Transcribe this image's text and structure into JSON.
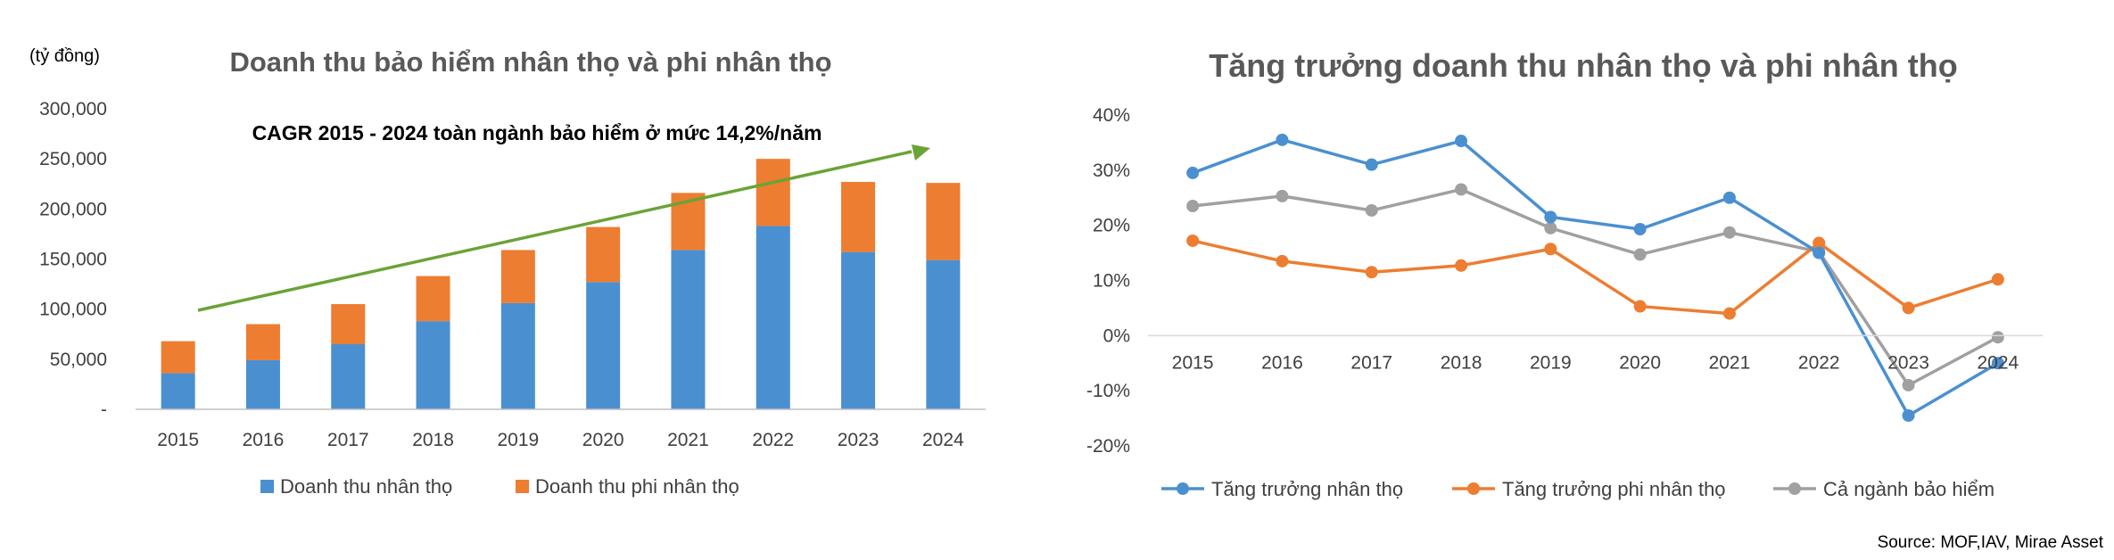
{
  "source": "Source: MOF,IAV, Mirae Asset",
  "chart_data": [
    {
      "type": "bar",
      "stacked": true,
      "title": "Doanh thu bảo hiểm nhân thọ và phi nhân thọ",
      "unit_label": "(tỷ đồng)",
      "annotation": "CAGR 2015 - 2024 toàn ngành bảo hiểm ở mức 14,2%/năm",
      "categories": [
        "2015",
        "2016",
        "2017",
        "2018",
        "2019",
        "2020",
        "2021",
        "2022",
        "2023",
        "2024"
      ],
      "series": [
        {
          "name": "Doanh thu nhân thọ",
          "color": "#4a90d0",
          "values": [
            36000,
            49000,
            65000,
            88000,
            106000,
            127000,
            159000,
            183000,
            157000,
            149000
          ]
        },
        {
          "name": "Doanh thu phi nhân thọ",
          "color": "#ed7d31",
          "values": [
            32000,
            36000,
            40000,
            45000,
            53000,
            55000,
            57000,
            67000,
            70000,
            77000
          ]
        }
      ],
      "ylim": [
        0,
        300000
      ],
      "yticks": [
        0,
        50000,
        100000,
        150000,
        200000,
        250000,
        300000
      ],
      "ytick_labels": [
        "-",
        "50,000",
        "100,000",
        "150,000",
        "200,000",
        "250,000",
        "300,000"
      ],
      "trend_arrow_color": "#6aa336",
      "legend_position": "bottom"
    },
    {
      "type": "line",
      "title": "Tăng trưởng doanh thu nhân thọ và phi nhân thọ",
      "categories": [
        "2015",
        "2016",
        "2017",
        "2018",
        "2019",
        "2020",
        "2021",
        "2022",
        "2023",
        "2024"
      ],
      "series": [
        {
          "name": "Tăng trưởng nhân thọ",
          "color": "#4a90d0",
          "values": [
            29.5,
            35.5,
            31,
            35.3,
            21.5,
            19.3,
            25,
            15,
            -14.5,
            -5
          ]
        },
        {
          "name": "Tăng trưởng phi nhân thọ",
          "color": "#ed7d31",
          "values": [
            17.2,
            13.5,
            11.5,
            12.7,
            15.7,
            5.3,
            4,
            16.8,
            5,
            10.2
          ]
        },
        {
          "name": "Cả ngành bảo hiểm",
          "color": "#a0a0a0",
          "values": [
            23.5,
            25.3,
            22.7,
            26.5,
            19.5,
            14.7,
            18.7,
            15.2,
            -9,
            -0.3
          ]
        }
      ],
      "ylim": [
        -20,
        40
      ],
      "yticks": [
        -20,
        -10,
        0,
        10,
        20,
        30,
        40
      ],
      "ytick_labels": [
        "-20%",
        "-10%",
        "0%",
        "10%",
        "20%",
        "30%",
        "40%"
      ],
      "legend_position": "bottom"
    }
  ]
}
